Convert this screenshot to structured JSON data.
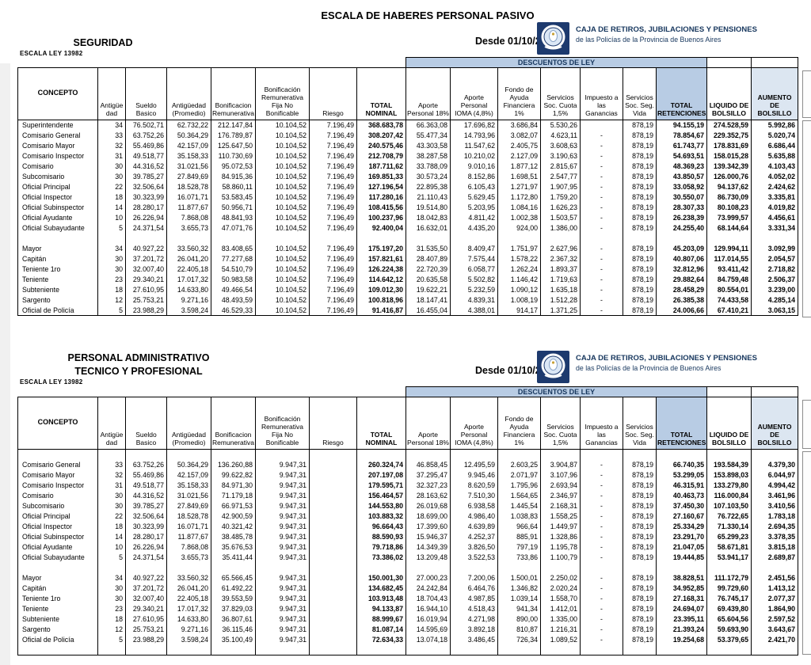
{
  "page": {
    "title": "ESCALA DE HABERES PERSONAL PASIVO"
  },
  "org": {
    "name": "CAJA DE RETIROS, JUBILACIONES Y PENSIONES",
    "subtitle": "de las Policías de la Provincia de Buenos Aires"
  },
  "table": {
    "descuentos_label": "DESCUENTOS DE LEY",
    "columns": [
      {
        "label": "CONCEPTO",
        "bold": true
      },
      {
        "label": "Antigüe dad"
      },
      {
        "label": "Sueldo Basico"
      },
      {
        "label": "Antigüedad (Promedio)"
      },
      {
        "label": "Bonificacion Remunerativa"
      },
      {
        "label": "Bonificación Remunerativa Fija No Bonificable"
      },
      {
        "label": "Riesgo"
      },
      {
        "label": "TOTAL NOMINAL",
        "bold": true
      },
      {
        "label": "Aporte Personal 18%"
      },
      {
        "label": "Aporte Personal IOMA (4,8%)"
      },
      {
        "label": "Fondo de Ayuda Financiera 1%"
      },
      {
        "label": "Servicios Soc. Cuota 1,5%"
      },
      {
        "label": "Impuesto a las Ganancias"
      },
      {
        "label": "Servicios Soc. Seg. Vida"
      },
      {
        "label": "TOTAL RETENCIONES",
        "bold": true,
        "bg": "#b8cce4"
      },
      {
        "label": "LIQUIDO DE BOLSILLO",
        "bold": true
      },
      {
        "label": "AUMENTO DE BOLSILLO",
        "bold": true,
        "bg": "#dce6f1"
      }
    ]
  },
  "colors": {
    "band_blue": "#b8cce4",
    "light_blue": "#dce6f1",
    "navy_text": "#17375e",
    "logo_navy": "#1d3a6e"
  },
  "sections": [
    {
      "heading_line1": "SEGURIDAD",
      "heading_line2": "",
      "law": "ESCALA  LEY 13982",
      "effective": "Desde 01/10/2021",
      "leading_blank": false,
      "trailing_blank": false,
      "group1": [
        [
          "Superintendente",
          "34",
          "76.502,71",
          "62.732,22",
          "212.147,84",
          "10.104,52",
          "7.196,49",
          "368.683,78",
          "66.363,08",
          "17.696,82",
          "3.686,84",
          "5.530,26",
          "",
          "878,19",
          "94.155,19",
          "274.528,59",
          "5.992,86"
        ],
        [
          "Comisario General",
          "33",
          "63.752,26",
          "50.364,29",
          "176.789,87",
          "10.104,52",
          "7.196,49",
          "308.207,42",
          "55.477,34",
          "14.793,96",
          "3.082,07",
          "4.623,11",
          "-",
          "878,19",
          "78.854,67",
          "229.352,75",
          "5.020,74"
        ],
        [
          "Comisario Mayor",
          "32",
          "55.469,86",
          "42.157,09",
          "125.647,50",
          "10.104,52",
          "7.196,49",
          "240.575,46",
          "43.303,58",
          "11.547,62",
          "2.405,75",
          "3.608,63",
          "-",
          "878,19",
          "61.743,77",
          "178.831,69",
          "6.686,44"
        ],
        [
          "Comisario Inspector",
          "31",
          "49.518,77",
          "35.158,33",
          "110.730,69",
          "10.104,52",
          "7.196,49",
          "212.708,79",
          "38.287,58",
          "10.210,02",
          "2.127,09",
          "3.190,63",
          "-",
          "878,19",
          "54.693,51",
          "158.015,28",
          "5.635,88"
        ],
        [
          "Comisario",
          "30",
          "44.316,52",
          "31.021,56",
          "95.072,53",
          "10.104,52",
          "7.196,49",
          "187.711,62",
          "33.788,09",
          "9.010,16",
          "1.877,12",
          "2.815,67",
          "-",
          "878,19",
          "48.369,23",
          "139.342,39",
          "4.103,43"
        ],
        [
          "Subcomisario",
          "30",
          "39.785,27",
          "27.849,69",
          "84.915,36",
          "10.104,52",
          "7.196,49",
          "169.851,33",
          "30.573,24",
          "8.152,86",
          "1.698,51",
          "2.547,77",
          "-",
          "878,19",
          "43.850,57",
          "126.000,76",
          "4.052,02"
        ],
        [
          "Oficial Principal",
          "22",
          "32.506,64",
          "18.528,78",
          "58.860,11",
          "10.104,52",
          "7.196,49",
          "127.196,54",
          "22.895,38",
          "6.105,43",
          "1.271,97",
          "1.907,95",
          "-",
          "878,19",
          "33.058,92",
          "94.137,62",
          "2.424,62"
        ],
        [
          "Oficial Inspector",
          "18",
          "30.323,99",
          "16.071,71",
          "53.583,45",
          "10.104,52",
          "7.196,49",
          "117.280,16",
          "21.110,43",
          "5.629,45",
          "1.172,80",
          "1.759,20",
          "-",
          "878,19",
          "30.550,07",
          "86.730,09",
          "3.335,81"
        ],
        [
          "Oficial Subinspector",
          "14",
          "28.280,17",
          "11.877,67",
          "50.956,71",
          "10.104,52",
          "7.196,49",
          "108.415,56",
          "19.514,80",
          "5.203,95",
          "1.084,16",
          "1.626,23",
          "-",
          "878,19",
          "28.307,33",
          "80.108,23",
          "4.019,82"
        ],
        [
          "Oficial Ayudante",
          "10",
          "26.226,94",
          "7.868,08",
          "48.841,93",
          "10.104,52",
          "7.196,49",
          "100.237,96",
          "18.042,83",
          "4.811,42",
          "1.002,38",
          "1.503,57",
          "-",
          "878,19",
          "26.238,39",
          "73.999,57",
          "4.456,61"
        ],
        [
          "Oficial Subayudante",
          "5",
          "24.371,54",
          "3.655,73",
          "47.071,76",
          "10.104,52",
          "7.196,49",
          "92.400,04",
          "16.632,01",
          "4.435,20",
          "924,00",
          "1.386,00",
          "-",
          "878,19",
          "24.255,40",
          "68.144,64",
          "3.331,34"
        ]
      ],
      "group2": [
        [
          "Mayor",
          "34",
          "40.927,22",
          "33.560,32",
          "83.408,65",
          "10.104,52",
          "7.196,49",
          "175.197,20",
          "31.535,50",
          "8.409,47",
          "1.751,97",
          "2.627,96",
          "-",
          "878,19",
          "45.203,09",
          "129.994,11",
          "3.092,99"
        ],
        [
          "Capitán",
          "30",
          "37.201,72",
          "26.041,20",
          "77.277,68",
          "10.104,52",
          "7.196,49",
          "157.821,61",
          "28.407,89",
          "7.575,44",
          "1.578,22",
          "2.367,32",
          "-",
          "878,19",
          "40.807,06",
          "117.014,55",
          "2.054,57"
        ],
        [
          "Teniente 1ro",
          "30",
          "32.007,40",
          "22.405,18",
          "54.510,79",
          "10.104,52",
          "7.196,49",
          "126.224,38",
          "22.720,39",
          "6.058,77",
          "1.262,24",
          "1.893,37",
          "-",
          "878,19",
          "32.812,96",
          "93.411,42",
          "2.718,82"
        ],
        [
          "Teniente",
          "23",
          "29.340,21",
          "17.017,32",
          "50.983,58",
          "10.104,52",
          "7.196,49",
          "114.642,12",
          "20.635,58",
          "5.502,82",
          "1.146,42",
          "1.719,63",
          "-",
          "878,19",
          "29.882,64",
          "84.759,48",
          "2.506,37"
        ],
        [
          "Subteniente",
          "18",
          "27.610,95",
          "14.633,80",
          "49.466,54",
          "10.104,52",
          "7.196,49",
          "109.012,30",
          "19.622,21",
          "5.232,59",
          "1.090,12",
          "1.635,18",
          "-",
          "878,19",
          "28.458,29",
          "80.554,01",
          "3.239,00"
        ],
        [
          "Sargento",
          "12",
          "25.753,21",
          "9.271,16",
          "48.493,59",
          "10.104,52",
          "7.196,49",
          "100.818,96",
          "18.147,41",
          "4.839,31",
          "1.008,19",
          "1.512,28",
          "-",
          "878,19",
          "26.385,38",
          "74.433,58",
          "4.285,14"
        ],
        [
          "Oficial de Policía",
          "5",
          "23.988,29",
          "3.598,24",
          "46.529,33",
          "10.104,52",
          "7.196,49",
          "91.416,87",
          "16.455,04",
          "4.388,01",
          "914,17",
          "1.371,25",
          "-",
          "878,19",
          "24.006,66",
          "67.410,21",
          "3.063,15"
        ]
      ]
    },
    {
      "heading_line1": "PERSONAL ADMINISTRATIVO",
      "heading_line2": "TECNICO Y PROFESIONAL",
      "law": "ESCALA  LEY 13982",
      "effective": "Desde 01/10/2021",
      "leading_blank": true,
      "trailing_blank": true,
      "group1": [
        [
          "Comisario General",
          "33",
          "63.752,26",
          "50.364,29",
          "136.260,88",
          "9.947,31",
          "",
          "260.324,74",
          "46.858,45",
          "12.495,59",
          "2.603,25",
          "3.904,87",
          "-",
          "878,19",
          "66.740,35",
          "193.584,39",
          "4.379,30"
        ],
        [
          "Comisario Mayor",
          "32",
          "55.469,86",
          "42.157,09",
          "99.622,82",
          "9.947,31",
          "",
          "207.197,08",
          "37.295,47",
          "9.945,46",
          "2.071,97",
          "3.107,96",
          "-",
          "878,19",
          "53.299,05",
          "153.898,03",
          "6.044,97"
        ],
        [
          "Comisario Inspector",
          "31",
          "49.518,77",
          "35.158,33",
          "84.971,30",
          "9.947,31",
          "",
          "179.595,71",
          "32.327,23",
          "8.620,59",
          "1.795,96",
          "2.693,94",
          "-",
          "878,19",
          "46.315,91",
          "133.279,80",
          "4.994,42"
        ],
        [
          "Comisario",
          "30",
          "44.316,52",
          "31.021,56",
          "71.179,18",
          "9.947,31",
          "",
          "156.464,57",
          "28.163,62",
          "7.510,30",
          "1.564,65",
          "2.346,97",
          "-",
          "878,19",
          "40.463,73",
          "116.000,84",
          "3.461,96"
        ],
        [
          "Subcomisario",
          "30",
          "39.785,27",
          "27.849,69",
          "66.971,53",
          "9.947,31",
          "",
          "144.553,80",
          "26.019,68",
          "6.938,58",
          "1.445,54",
          "2.168,31",
          "-",
          "878,19",
          "37.450,30",
          "107.103,50",
          "3.410,56"
        ],
        [
          "Oficial Principal",
          "22",
          "32.506,64",
          "18.528,78",
          "42.900,59",
          "9.947,31",
          "",
          "103.883,32",
          "18.699,00",
          "4.986,40",
          "1.038,83",
          "1.558,25",
          "-",
          "878,19",
          "27.160,67",
          "76.722,65",
          "1.783,18"
        ],
        [
          "Oficial Inspector",
          "18",
          "30.323,99",
          "16.071,71",
          "40.321,42",
          "9.947,31",
          "",
          "96.664,43",
          "17.399,60",
          "4.639,89",
          "966,64",
          "1.449,97",
          "-",
          "878,19",
          "25.334,29",
          "71.330,14",
          "2.694,35"
        ],
        [
          "Oficial Subinspector",
          "14",
          "28.280,17",
          "11.877,67",
          "38.485,78",
          "9.947,31",
          "",
          "88.590,93",
          "15.946,37",
          "4.252,37",
          "885,91",
          "1.328,86",
          "-",
          "878,19",
          "23.291,70",
          "65.299,23",
          "3.378,35"
        ],
        [
          "Oficial Ayudante",
          "10",
          "26.226,94",
          "7.868,08",
          "35.676,53",
          "9.947,31",
          "",
          "79.718,86",
          "14.349,39",
          "3.826,50",
          "797,19",
          "1.195,78",
          "-",
          "878,19",
          "21.047,05",
          "58.671,81",
          "3.815,18"
        ],
        [
          "Oficial Subayudante",
          "5",
          "24.371,54",
          "3.655,73",
          "35.411,44",
          "9.947,31",
          "",
          "73.386,02",
          "13.209,48",
          "3.522,53",
          "733,86",
          "1.100,79",
          "-",
          "878,19",
          "19.444,85",
          "53.941,17",
          "2.689,87"
        ]
      ],
      "group2": [
        [
          "Mayor",
          "34",
          "40.927,22",
          "33.560,32",
          "65.566,45",
          "9.947,31",
          "",
          "150.001,30",
          "27.000,23",
          "7.200,06",
          "1.500,01",
          "2.250,02",
          "-",
          "878,19",
          "38.828,51",
          "111.172,79",
          "2.451,56"
        ],
        [
          "Capitán",
          "30",
          "37.201,72",
          "26.041,20",
          "61.492,22",
          "9.947,31",
          "",
          "134.682,45",
          "24.242,84",
          "6.464,76",
          "1.346,82",
          "2.020,24",
          "-",
          "878,19",
          "34.952,85",
          "99.729,60",
          "1.413,12"
        ],
        [
          "Teniente 1ro",
          "30",
          "32.007,40",
          "22.405,18",
          "39.553,59",
          "9.947,31",
          "",
          "103.913,48",
          "18.704,43",
          "4.987,85",
          "1.039,14",
          "1.558,70",
          "-",
          "878,19",
          "27.168,31",
          "76.745,17",
          "2.077,37"
        ],
        [
          "Teniente",
          "23",
          "29.340,21",
          "17.017,32",
          "37.829,03",
          "9.947,31",
          "",
          "94.133,87",
          "16.944,10",
          "4.518,43",
          "941,34",
          "1.412,01",
          "-",
          "878,19",
          "24.694,07",
          "69.439,80",
          "1.864,90"
        ],
        [
          "Subteniente",
          "18",
          "27.610,95",
          "14.633,80",
          "36.807,61",
          "9.947,31",
          "",
          "88.999,67",
          "16.019,94",
          "4.271,98",
          "890,00",
          "1.335,00",
          "-",
          "878,19",
          "23.395,11",
          "65.604,56",
          "2.597,52"
        ],
        [
          "Sargento",
          "12",
          "25.753,21",
          "9.271,16",
          "36.115,46",
          "9.947,31",
          "",
          "81.087,14",
          "14.595,69",
          "3.892,18",
          "810,87",
          "1.216,31",
          "-",
          "878,19",
          "21.393,24",
          "59.693,90",
          "3.643,67"
        ],
        [
          "Oficial de Policía",
          "5",
          "23.988,29",
          "3.598,24",
          "35.100,49",
          "9.947,31",
          "",
          "72.634,33",
          "13.074,18",
          "3.486,45",
          "726,34",
          "1.089,52",
          "-",
          "878,19",
          "19.254,68",
          "53.379,65",
          "2.421,70"
        ]
      ]
    }
  ]
}
